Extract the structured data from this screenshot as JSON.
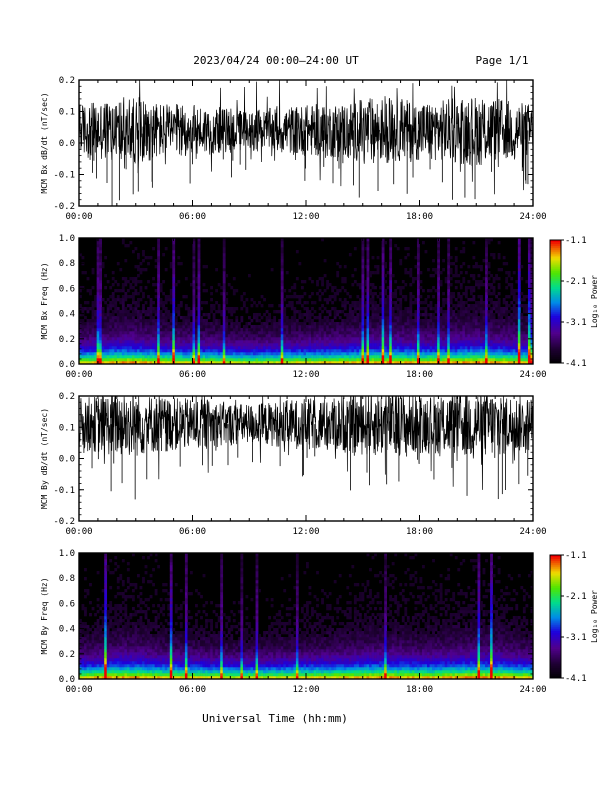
{
  "header": {
    "title": "2023/04/24  00:00–24:00 UT",
    "page": "Page 1/1"
  },
  "xlabel": "Universal Time (hh:mm)",
  "colorbar": {
    "label": "Log₁₀ Power",
    "ticks": [
      "-1.1",
      "-2.1",
      "-3.1",
      "-4.1"
    ],
    "range": [
      -4.1,
      -1.1
    ]
  },
  "chart_data": [
    {
      "type": "line",
      "ylabel": "MCM Bx dB/dt (nT/sec)",
      "x_ticks": [
        "00:00",
        "06:00",
        "12:00",
        "18:00",
        "24:00"
      ],
      "y_ticks": [
        "0.2",
        "0.1",
        "0.0",
        "-0.1",
        "-0.2"
      ],
      "xlim": [
        0,
        24
      ],
      "ylim": [
        -0.2,
        0.2
      ],
      "baseline": 0.04
    },
    {
      "type": "heatmap",
      "ylabel": "MCM Bx Freq (Hz)",
      "x_ticks": [
        "00:00",
        "06:00",
        "12:00",
        "18:00",
        "24:00"
      ],
      "y_ticks": [
        "1.0",
        "0.8",
        "0.6",
        "0.4",
        "0.2",
        "0.0"
      ],
      "xlim": [
        0,
        24
      ],
      "ylim": [
        0,
        1.0
      ]
    },
    {
      "type": "line",
      "ylabel": "MCM By dB/dt (nT/sec)",
      "x_ticks": [
        "00:00",
        "06:00",
        "12:00",
        "18:00",
        "24:00"
      ],
      "y_ticks": [
        "0.2",
        "0.1",
        "0.0",
        "-0.1",
        "-0.2"
      ],
      "xlim": [
        0,
        24
      ],
      "ylim": [
        -0.2,
        0.2
      ],
      "baseline": 0.11
    },
    {
      "type": "heatmap",
      "ylabel": "MCM By Freq (Hz)",
      "x_ticks": [
        "00:00",
        "06:00",
        "12:00",
        "18:00",
        "24:00"
      ],
      "y_ticks": [
        "1.0",
        "0.8",
        "0.6",
        "0.4",
        "0.2",
        "0.0"
      ],
      "xlim": [
        0,
        24
      ],
      "ylim": [
        0,
        1.0
      ]
    }
  ]
}
